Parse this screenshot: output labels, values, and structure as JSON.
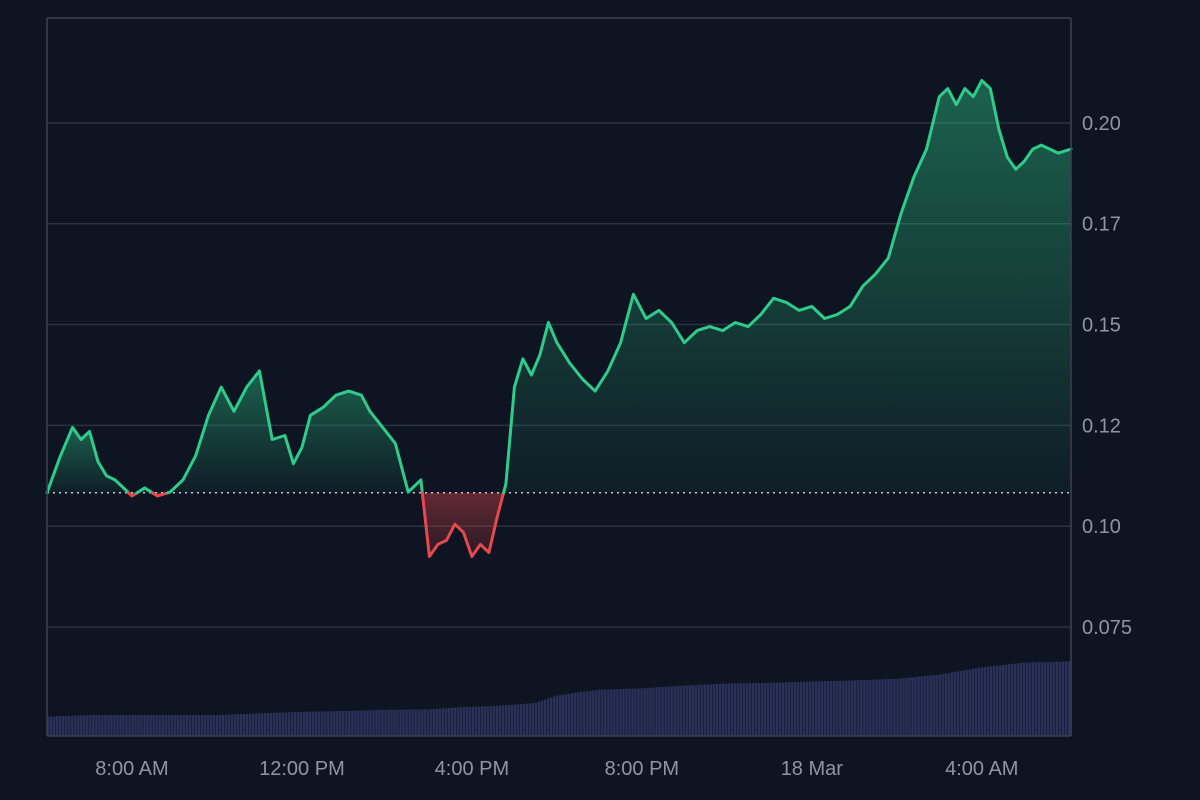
{
  "chart_data": {
    "type": "area",
    "y_axis": {
      "position": "right",
      "ticks": [
        "0.075",
        "0.10",
        "0.12",
        "0.15",
        "0.17",
        "0.20"
      ],
      "tick_values": [
        0.075,
        0.1,
        0.125,
        0.15,
        0.175,
        0.2
      ],
      "ylim": [
        0.048,
        0.226
      ]
    },
    "x_axis": {
      "ticks": [
        "8:00 AM",
        "12:00 PM",
        "4:00 PM",
        "8:00 PM",
        "18 Mar",
        "4:00 AM"
      ],
      "tick_hours": [
        8,
        12,
        16,
        20,
        24,
        28
      ],
      "xlim_hours": [
        6.0,
        30.1
      ]
    },
    "baseline": 0.1083,
    "grid": true,
    "colors": {
      "up": "#2ecc8a",
      "down": "#e5484d",
      "volume": "#2a3259",
      "grid": "#2b3240",
      "baseline": "#d8dce4",
      "axis": "#3a4150"
    },
    "series": [
      {
        "type": "line",
        "x_hours": [
          6.0,
          6.3,
          6.6,
          6.8,
          7.0,
          7.2,
          7.4,
          7.6,
          7.8,
          8.0,
          8.3,
          8.6,
          8.9,
          9.2,
          9.5,
          9.8,
          10.1,
          10.4,
          10.7,
          11.0,
          11.3,
          11.6,
          11.8,
          12.0,
          12.2,
          12.5,
          12.8,
          13.1,
          13.4,
          13.6,
          13.9,
          14.2,
          14.5,
          14.8,
          15.0,
          15.2,
          15.4,
          15.6,
          15.8,
          16.0,
          16.2,
          16.4,
          16.6,
          16.8,
          17.0,
          17.2,
          17.4,
          17.6,
          17.8,
          18.0,
          18.3,
          18.6,
          18.9,
          19.2,
          19.5,
          19.8,
          20.1,
          20.4,
          20.7,
          21.0,
          21.3,
          21.6,
          21.9,
          22.2,
          22.5,
          22.8,
          23.1,
          23.4,
          23.7,
          24.0,
          24.3,
          24.6,
          24.9,
          25.2,
          25.5,
          25.8,
          26.1,
          26.4,
          26.7,
          27.0,
          27.2,
          27.4,
          27.6,
          27.8,
          28.0,
          28.2,
          28.4,
          28.6,
          28.8,
          29.0,
          29.2,
          29.4,
          29.6,
          29.8,
          30.1
        ],
        "values": [
          0.1083,
          0.117,
          0.1245,
          0.1215,
          0.1235,
          0.116,
          0.1125,
          0.1115,
          0.1095,
          0.1075,
          0.1095,
          0.1075,
          0.1085,
          0.1115,
          0.1175,
          0.1275,
          0.1345,
          0.1285,
          0.1345,
          0.1385,
          0.1215,
          0.1225,
          0.1155,
          0.1195,
          0.1275,
          0.1295,
          0.1325,
          0.1335,
          0.1325,
          0.1285,
          0.1245,
          0.1205,
          0.1085,
          0.1115,
          0.0925,
          0.0955,
          0.0965,
          0.1005,
          0.0985,
          0.0925,
          0.0955,
          0.0935,
          0.1025,
          0.1105,
          0.1345,
          0.1415,
          0.1375,
          0.1425,
          0.1505,
          0.1455,
          0.1405,
          0.1365,
          0.1335,
          0.1385,
          0.1455,
          0.1575,
          0.1515,
          0.1535,
          0.1505,
          0.1455,
          0.1485,
          0.1495,
          0.1485,
          0.1505,
          0.1495,
          0.1525,
          0.1565,
          0.1555,
          0.1535,
          0.1545,
          0.1515,
          0.1525,
          0.1545,
          0.1595,
          0.1625,
          0.1665,
          0.1775,
          0.1865,
          0.1935,
          0.2065,
          0.2085,
          0.2045,
          0.2085,
          0.2065,
          0.2105,
          0.2085,
          0.1985,
          0.1915,
          0.1885,
          0.1905,
          0.1935,
          0.1945,
          0.1935,
          0.1925,
          0.1935
        ]
      }
    ],
    "volume": {
      "x_hours": [
        6.0,
        7.0,
        8.0,
        9.0,
        10.0,
        11.0,
        12.0,
        13.0,
        14.0,
        15.0,
        15.8,
        16.5,
        17.0,
        17.5,
        18.0,
        18.5,
        19.0,
        20.0,
        21.0,
        22.0,
        23.0,
        24.0,
        25.0,
        26.0,
        27.0,
        28.0,
        29.0,
        30.1
      ],
      "values": [
        0.0528,
        0.0532,
        0.0532,
        0.0532,
        0.0532,
        0.0536,
        0.054,
        0.0542,
        0.0545,
        0.0546,
        0.0552,
        0.0554,
        0.0558,
        0.0562,
        0.058,
        0.0588,
        0.0595,
        0.0598,
        0.0605,
        0.061,
        0.0612,
        0.0615,
        0.0618,
        0.0622,
        0.0632,
        0.065,
        0.0662,
        0.0665
      ]
    }
  }
}
